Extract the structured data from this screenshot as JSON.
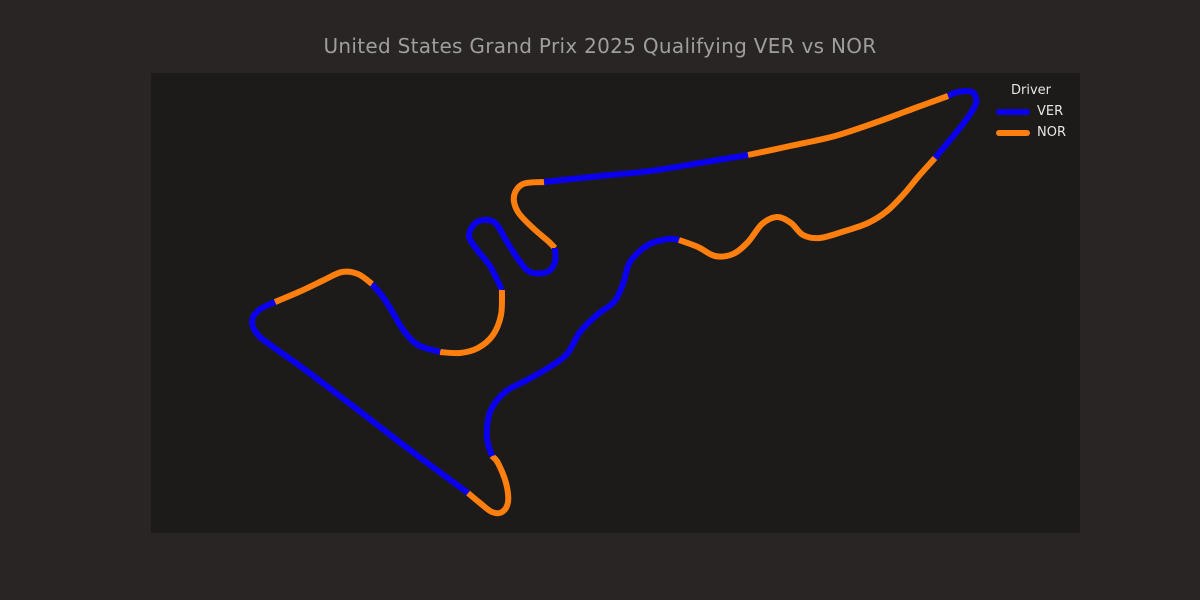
{
  "title": "United States Grand Prix 2025 Qualifying VER vs NOR",
  "legend": {
    "title": "Driver",
    "items": [
      {
        "label": "VER",
        "color": "#0a00ee"
      },
      {
        "label": "NOR",
        "color": "#ff7f0e"
      }
    ]
  },
  "chart_data": {
    "type": "line",
    "title": "United States Grand Prix 2025 Qualifying VER vs NOR",
    "xlabel": "",
    "ylabel": "",
    "grid": false,
    "legend_position": "top-right",
    "background": "#1c1b1a",
    "page_background": "#282524",
    "series": [
      {
        "name": "VER",
        "color": "#0a00ee"
      },
      {
        "name": "NOR",
        "color": "#ff7f0e"
      }
    ],
    "segments": [
      {
        "driver": "NOR",
        "points": [
          [
            468,
            493
          ],
          [
            480,
            503
          ],
          [
            492,
            512
          ],
          [
            502,
            512
          ],
          [
            508,
            502
          ],
          [
            506,
            483
          ],
          [
            498,
            463
          ],
          [
            492,
            456
          ]
        ]
      },
      {
        "driver": "VER",
        "points": [
          [
            492,
            456
          ],
          [
            487,
            438
          ],
          [
            490,
            412
          ],
          [
            505,
            392
          ],
          [
            527,
            380
          ],
          [
            548,
            368
          ],
          [
            567,
            354
          ],
          [
            580,
            332
          ],
          [
            598,
            314
          ],
          [
            614,
            302
          ],
          [
            623,
            284
          ],
          [
            630,
            262
          ],
          [
            648,
            245
          ],
          [
            668,
            239
          ],
          [
            679,
            240
          ]
        ]
      },
      {
        "driver": "NOR",
        "points": [
          [
            679,
            240
          ],
          [
            698,
            247
          ],
          [
            715,
            256
          ],
          [
            733,
            254
          ],
          [
            748,
            242
          ],
          [
            762,
            224
          ],
          [
            777,
            217
          ],
          [
            791,
            223
          ],
          [
            803,
            235
          ],
          [
            820,
            238
          ],
          [
            845,
            231
          ],
          [
            868,
            223
          ],
          [
            887,
            211
          ],
          [
            903,
            195
          ],
          [
            918,
            177
          ],
          [
            935,
            158
          ]
        ]
      },
      {
        "driver": "VER",
        "points": [
          [
            935,
            158
          ],
          [
            950,
            140
          ],
          [
            966,
            120
          ],
          [
            976,
            103
          ],
          [
            972,
            92
          ],
          [
            958,
            92
          ],
          [
            948,
            96
          ]
        ]
      },
      {
        "driver": "NOR",
        "points": [
          [
            948,
            96
          ],
          [
            915,
            108
          ],
          [
            880,
            121
          ],
          [
            835,
            136
          ],
          [
            790,
            146
          ],
          [
            748,
            155
          ]
        ]
      },
      {
        "driver": "VER",
        "points": [
          [
            748,
            155
          ],
          [
            700,
            163
          ],
          [
            650,
            171
          ],
          [
            600,
            176
          ],
          [
            544,
            182
          ]
        ]
      },
      {
        "driver": "NOR",
        "points": [
          [
            544,
            182
          ],
          [
            523,
            184
          ],
          [
            514,
            196
          ],
          [
            518,
            212
          ],
          [
            533,
            228
          ],
          [
            548,
            241
          ],
          [
            555,
            248
          ]
        ]
      },
      {
        "driver": "VER",
        "points": [
          [
            555,
            248
          ],
          [
            555,
            262
          ],
          [
            547,
            272
          ],
          [
            530,
            272
          ],
          [
            518,
            259
          ],
          [
            507,
            242
          ],
          [
            494,
            222
          ],
          [
            477,
            222
          ],
          [
            469,
            236
          ],
          [
            478,
            251
          ],
          [
            490,
            266
          ],
          [
            502,
            290
          ]
        ]
      },
      {
        "driver": "NOR",
        "points": [
          [
            502,
            290
          ],
          [
            501,
            315
          ],
          [
            493,
            335
          ],
          [
            478,
            348
          ],
          [
            460,
            353
          ],
          [
            440,
            352
          ]
        ]
      },
      {
        "driver": "VER",
        "points": [
          [
            440,
            352
          ],
          [
            418,
            345
          ],
          [
            404,
            331
          ],
          [
            393,
            313
          ],
          [
            383,
            297
          ],
          [
            372,
            284
          ]
        ]
      },
      {
        "driver": "NOR",
        "points": [
          [
            372,
            284
          ],
          [
            358,
            274
          ],
          [
            342,
            272
          ],
          [
            324,
            280
          ],
          [
            301,
            291
          ],
          [
            275,
            302
          ]
        ]
      },
      {
        "driver": "VER",
        "points": [
          [
            275,
            302
          ],
          [
            259,
            310
          ],
          [
            252,
            321
          ],
          [
            258,
            335
          ],
          [
            276,
            349
          ],
          [
            300,
            366
          ],
          [
            345,
            400
          ],
          [
            410,
            450
          ],
          [
            468,
            493
          ]
        ]
      }
    ]
  }
}
